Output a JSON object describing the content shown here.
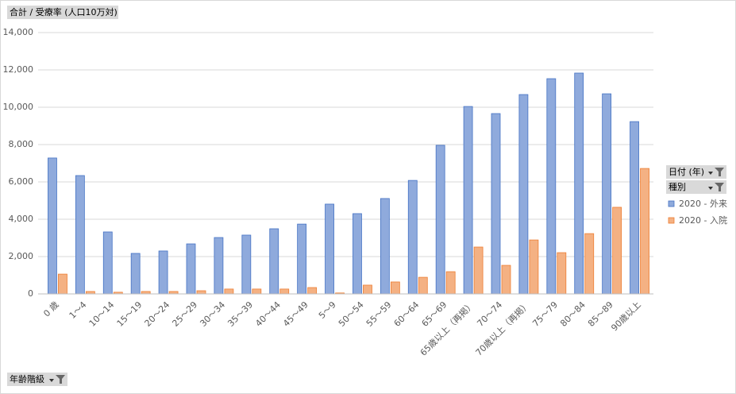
{
  "chart_data": {
    "type": "bar",
    "title": "合計 / 受療率 (人口10万対)",
    "x_field": "年齢階級",
    "legend_fields": [
      "日付 (年)",
      "種別"
    ],
    "legend": "right",
    "grid": true,
    "categories": [
      "0 歳",
      "1～4",
      "10～14",
      "15～19",
      "20～24",
      "25～29",
      "30～34",
      "35～39",
      "40～44",
      "45～49",
      "5～9",
      "50～54",
      "55～59",
      "60～64",
      "65～69",
      "65歳以上（再掲）",
      "70～74",
      "70歳以上（再掲）",
      "75～79",
      "80～84",
      "85～89",
      "90歳以上"
    ],
    "series": [
      {
        "name": "2020 - 外来",
        "color": "#8faadc",
        "values": [
          7280,
          6340,
          3320,
          2170,
          2300,
          2680,
          3020,
          3150,
          3490,
          3740,
          4810,
          4300,
          5110,
          6080,
          7960,
          10040,
          9660,
          10680,
          11530,
          11830,
          10720,
          9230
        ]
      },
      {
        "name": "2020 - 入院",
        "color": "#f4b183",
        "values": [
          1060,
          130,
          90,
          130,
          130,
          170,
          260,
          260,
          260,
          340,
          50,
          470,
          640,
          890,
          1190,
          2510,
          1530,
          2890,
          2210,
          3230,
          4640,
          6720
        ]
      }
    ],
    "ylim": [
      0,
      14000
    ],
    "yticks": [
      0,
      {
        "value": 2000,
        "label": "2,000"
      },
      {
        "value": 4000,
        "label": "4,000"
      },
      {
        "value": 6000,
        "label": "6,000"
      },
      {
        "value": 8000,
        "label": "8,000"
      },
      {
        "value": 10000,
        "label": "10,000"
      },
      {
        "value": 12000,
        "label": "12,000"
      },
      {
        "value": 14000,
        "label": "14,000"
      }
    ]
  }
}
